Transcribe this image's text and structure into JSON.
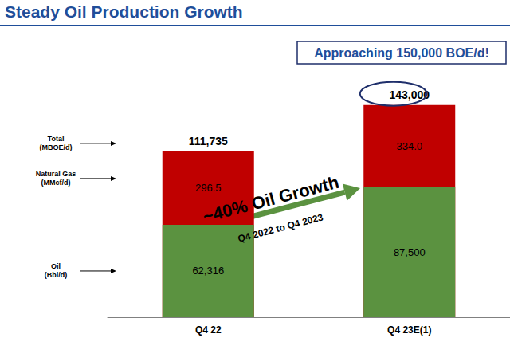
{
  "chart_data": {
    "type": "bar",
    "title": "Steady Oil Production Growth",
    "badge": "Approaching 150,000 BOE/d!",
    "annotation": "~40% Oil Growth",
    "annotation_sub": "Q4 2022 to Q4 2023",
    "categories": [
      "Q4 22",
      "Q4 23E(1)"
    ],
    "series": [
      {
        "name": "Oil",
        "unit": "(Bbl/d)",
        "color": "#5b9240",
        "values": [
          62316,
          87500
        ],
        "value_labels": [
          "62,316",
          "87,500"
        ]
      },
      {
        "name": "Natural Gas",
        "unit": "(MMcf/d)",
        "color": "#c00000",
        "values": [
          296.5,
          334.0
        ],
        "value_labels": [
          "296.5",
          "334.0"
        ]
      }
    ],
    "totals": {
      "name": "Total",
      "unit": "(MBOE/d)",
      "values": [
        111735,
        143000
      ],
      "value_labels": [
        "111,735",
        "143,000"
      ]
    },
    "ylim": [
      0,
      160000
    ],
    "stacked": true,
    "data_labels": true,
    "tick_labels": "x",
    "grid": false
  }
}
